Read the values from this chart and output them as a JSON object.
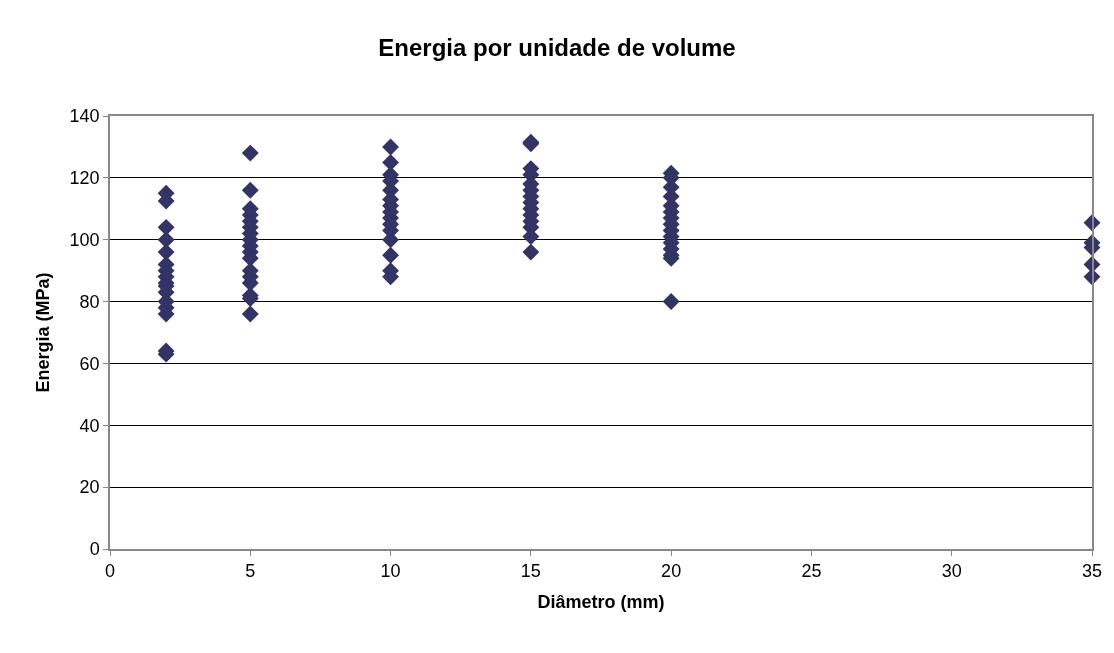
{
  "chart_data": {
    "type": "scatter",
    "title": "Energia por unidade de volume",
    "xlabel": "Diâmetro (mm)",
    "ylabel": "Energia (MPa)",
    "x": [
      2,
      2,
      2,
      2,
      2,
      2,
      2,
      2,
      2,
      2,
      2,
      2,
      2,
      2,
      2,
      2,
      5,
      5,
      5,
      5,
      5,
      5,
      5,
      5,
      5,
      5,
      5,
      5,
      5,
      5,
      5,
      5,
      5,
      10,
      10,
      10,
      10,
      10,
      10,
      10,
      10,
      10,
      10,
      10,
      10,
      10,
      10,
      10,
      15,
      15,
      15,
      15,
      15,
      15,
      15,
      15,
      15,
      15,
      15,
      15,
      15,
      15,
      20,
      20,
      20,
      20,
      20,
      20,
      20,
      20,
      20,
      20,
      20,
      20,
      20,
      20,
      20,
      35,
      35,
      35,
      35,
      35
    ],
    "series": [
      {
        "color": "#333366",
        "values": [
          115,
          112.5,
          104,
          100,
          96,
          92,
          90,
          88,
          86,
          85,
          83,
          80,
          78,
          76,
          64,
          63,
          128,
          116,
          110,
          108,
          106,
          104,
          102,
          100,
          98,
          96,
          94,
          90,
          88,
          86,
          82,
          81,
          76,
          130,
          125,
          121,
          119,
          116,
          113,
          111,
          109,
          107,
          105,
          103,
          100,
          95,
          90,
          88,
          131.5,
          131,
          123,
          121,
          118,
          116,
          114,
          112,
          110,
          108,
          106,
          104,
          101,
          96,
          121.5,
          120,
          117,
          114,
          111,
          109,
          107,
          105,
          103,
          101,
          99,
          97,
          95,
          94,
          80,
          105.5,
          99,
          97.5,
          92,
          88
        ]
      }
    ],
    "xlim": [
      0,
      35
    ],
    "xticks": [
      0,
      5,
      10,
      15,
      20,
      25,
      30,
      35
    ],
    "ylim": [
      0,
      140
    ],
    "yticks": [
      0,
      20,
      40,
      60,
      80,
      100,
      120,
      140
    ],
    "grid": "y",
    "marker": "diamond",
    "legend": false
  }
}
